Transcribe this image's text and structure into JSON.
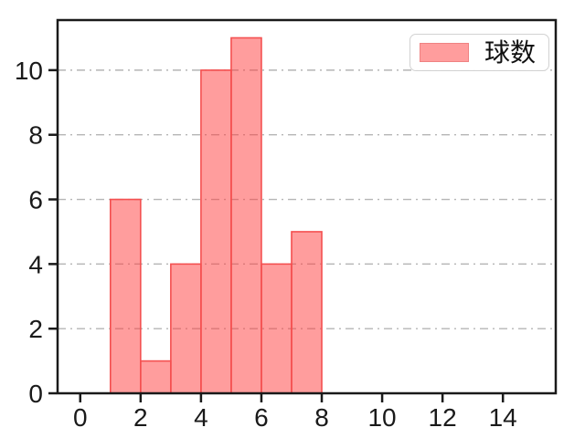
{
  "figure": {
    "background": "#ffffff",
    "legend": {
      "label": "球数",
      "swatch_fill": "#ff9d9d",
      "swatch_edge": "#ef8282",
      "position": "upper-right"
    }
  },
  "chart_data": {
    "type": "bar",
    "subtype": "histogram",
    "title": "",
    "xlabel": "",
    "ylabel": "",
    "bin_edges": [
      1,
      2,
      3,
      4,
      5,
      6,
      7,
      8
    ],
    "values": [
      6,
      1,
      4,
      10,
      11,
      4,
      5
    ],
    "series": [
      {
        "name": "球数",
        "values": [
          6,
          1,
          4,
          10,
          11,
          4,
          5
        ]
      }
    ],
    "x_ticks": [
      0,
      2,
      4,
      6,
      8,
      10,
      12,
      14
    ],
    "y_ticks": [
      0,
      2,
      4,
      6,
      8,
      10
    ],
    "xlim": [
      -0.75,
      15.75
    ],
    "ylim": [
      0,
      11.55
    ],
    "grid": {
      "axis": "y",
      "style": "dashdot",
      "color": "#b5b5b5"
    },
    "legend_position": "upper-right",
    "colors": {
      "bar_fill": "rgba(255,60,60,0.5)",
      "bar_fill_flat": "#ff9d9d",
      "bar_edge": "#f45050",
      "axis": "#1a1a1a",
      "tick_label": "#1a1a1a",
      "grid": "#b5b5b5"
    }
  }
}
